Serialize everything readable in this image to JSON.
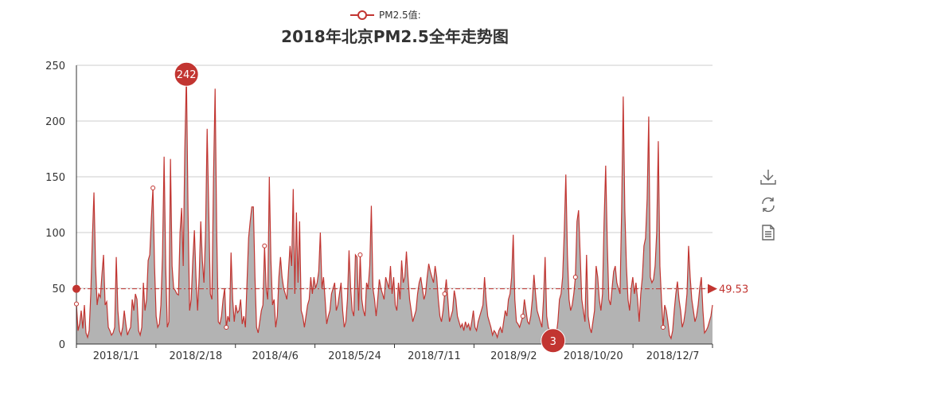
{
  "chart_data": {
    "type": "area",
    "title": "2018年北京PM2.5全年走势图",
    "legend": {
      "label": "PM2.5值:",
      "placement": "top-center"
    },
    "series": [
      {
        "name": "PM2.5值:",
        "color": "#c23531",
        "fill": "#b3b3b3",
        "values": [
          36,
          12,
          18,
          30,
          14,
          35,
          10,
          6,
          12,
          45,
          95,
          136,
          70,
          35,
          45,
          42,
          62,
          80,
          35,
          38,
          15,
          12,
          8,
          10,
          15,
          78,
          30,
          12,
          8,
          15,
          30,
          18,
          8,
          12,
          15,
          40,
          30,
          45,
          40,
          12,
          8,
          15,
          55,
          30,
          40,
          75,
          80,
          112,
          140,
          70,
          25,
          15,
          18,
          35,
          80,
          168,
          70,
          15,
          20,
          166,
          70,
          50,
          48,
          45,
          44,
          100,
          122,
          70,
          175,
          242,
          120,
          30,
          40,
          75,
          102,
          60,
          30,
          60,
          110,
          75,
          55,
          100,
          193,
          120,
          45,
          40,
          150,
          229,
          100,
          20,
          18,
          25,
          40,
          50,
          15,
          25,
          20,
          82,
          40,
          20,
          35,
          28,
          30,
          40,
          18,
          25,
          15,
          55,
          95,
          110,
          123,
          123,
          60,
          15,
          10,
          20,
          30,
          35,
          88,
          50,
          40,
          150,
          75,
          35,
          40,
          15,
          25,
          60,
          78,
          60,
          50,
          45,
          40,
          65,
          88,
          70,
          139,
          45,
          118,
          55,
          110,
          30,
          25,
          15,
          25,
          35,
          40,
          60,
          45,
          60,
          50,
          55,
          65,
          100,
          50,
          60,
          40,
          18,
          25,
          30,
          45,
          50,
          55,
          30,
          35,
          45,
          55,
          30,
          15,
          20,
          40,
          84,
          50,
          30,
          25,
          80,
          78,
          30,
          80,
          40,
          30,
          25,
          55,
          50,
          70,
          124,
          50,
          40,
          25,
          40,
          58,
          50,
          45,
          40,
          60,
          55,
          50,
          70,
          45,
          60,
          35,
          30,
          55,
          40,
          75,
          55,
          60,
          83,
          60,
          40,
          30,
          20,
          25,
          30,
          45,
          55,
          60,
          50,
          40,
          45,
          60,
          72,
          65,
          60,
          55,
          70,
          60,
          40,
          25,
          20,
          30,
          45,
          58,
          40,
          20,
          25,
          30,
          48,
          40,
          25,
          20,
          15,
          18,
          12,
          20,
          15,
          18,
          12,
          20,
          30,
          15,
          12,
          20,
          25,
          30,
          35,
          60,
          40,
          25,
          20,
          15,
          8,
          12,
          10,
          6,
          12,
          15,
          10,
          20,
          30,
          25,
          40,
          45,
          60,
          98,
          40,
          20,
          18,
          15,
          20,
          25,
          40,
          30,
          20,
          18,
          25,
          40,
          62,
          45,
          30,
          25,
          20,
          15,
          40,
          78,
          25,
          15,
          12,
          8,
          3,
          5,
          8,
          20,
          40,
          45,
          60,
          100,
          152,
          80,
          40,
          30,
          35,
          45,
          60,
          110,
          120,
          80,
          40,
          30,
          20,
          80,
          25,
          15,
          10,
          20,
          30,
          70,
          60,
          40,
          30,
          45,
          110,
          160,
          90,
          40,
          35,
          50,
          65,
          70,
          55,
          50,
          45,
          120,
          222,
          120,
          70,
          40,
          30,
          50,
          60,
          45,
          55,
          40,
          20,
          45,
          60,
          88,
          95,
          130,
          204,
          60,
          55,
          58,
          70,
          100,
          182,
          70,
          40,
          15,
          35,
          30,
          20,
          8,
          5,
          12,
          30,
          45,
          56,
          40,
          30,
          15,
          20,
          30,
          45,
          88,
          60,
          40,
          30,
          20,
          25,
          35,
          50,
          60,
          30,
          10,
          12,
          15,
          20,
          25,
          35
        ]
      }
    ],
    "x_tick_labels": [
      "2018/1/1",
      "2018/2/18",
      "2018/4/6",
      "2018/5/24",
      "2018/7/11",
      "2018/9/2",
      "2018/10/20",
      "2018/12/7"
    ],
    "y_ticks": [
      0,
      50,
      100,
      150,
      200,
      250
    ],
    "ylim": [
      0,
      250
    ],
    "grid": true,
    "mark_points": [
      {
        "type": "max",
        "label": "242"
      },
      {
        "type": "min",
        "label": "3"
      }
    ],
    "mark_line": {
      "type": "average",
      "label": "49.53"
    }
  },
  "toolbox": {
    "items": [
      {
        "name": "save-as-image-icon"
      },
      {
        "name": "restore-icon"
      },
      {
        "name": "data-view-icon"
      }
    ]
  }
}
